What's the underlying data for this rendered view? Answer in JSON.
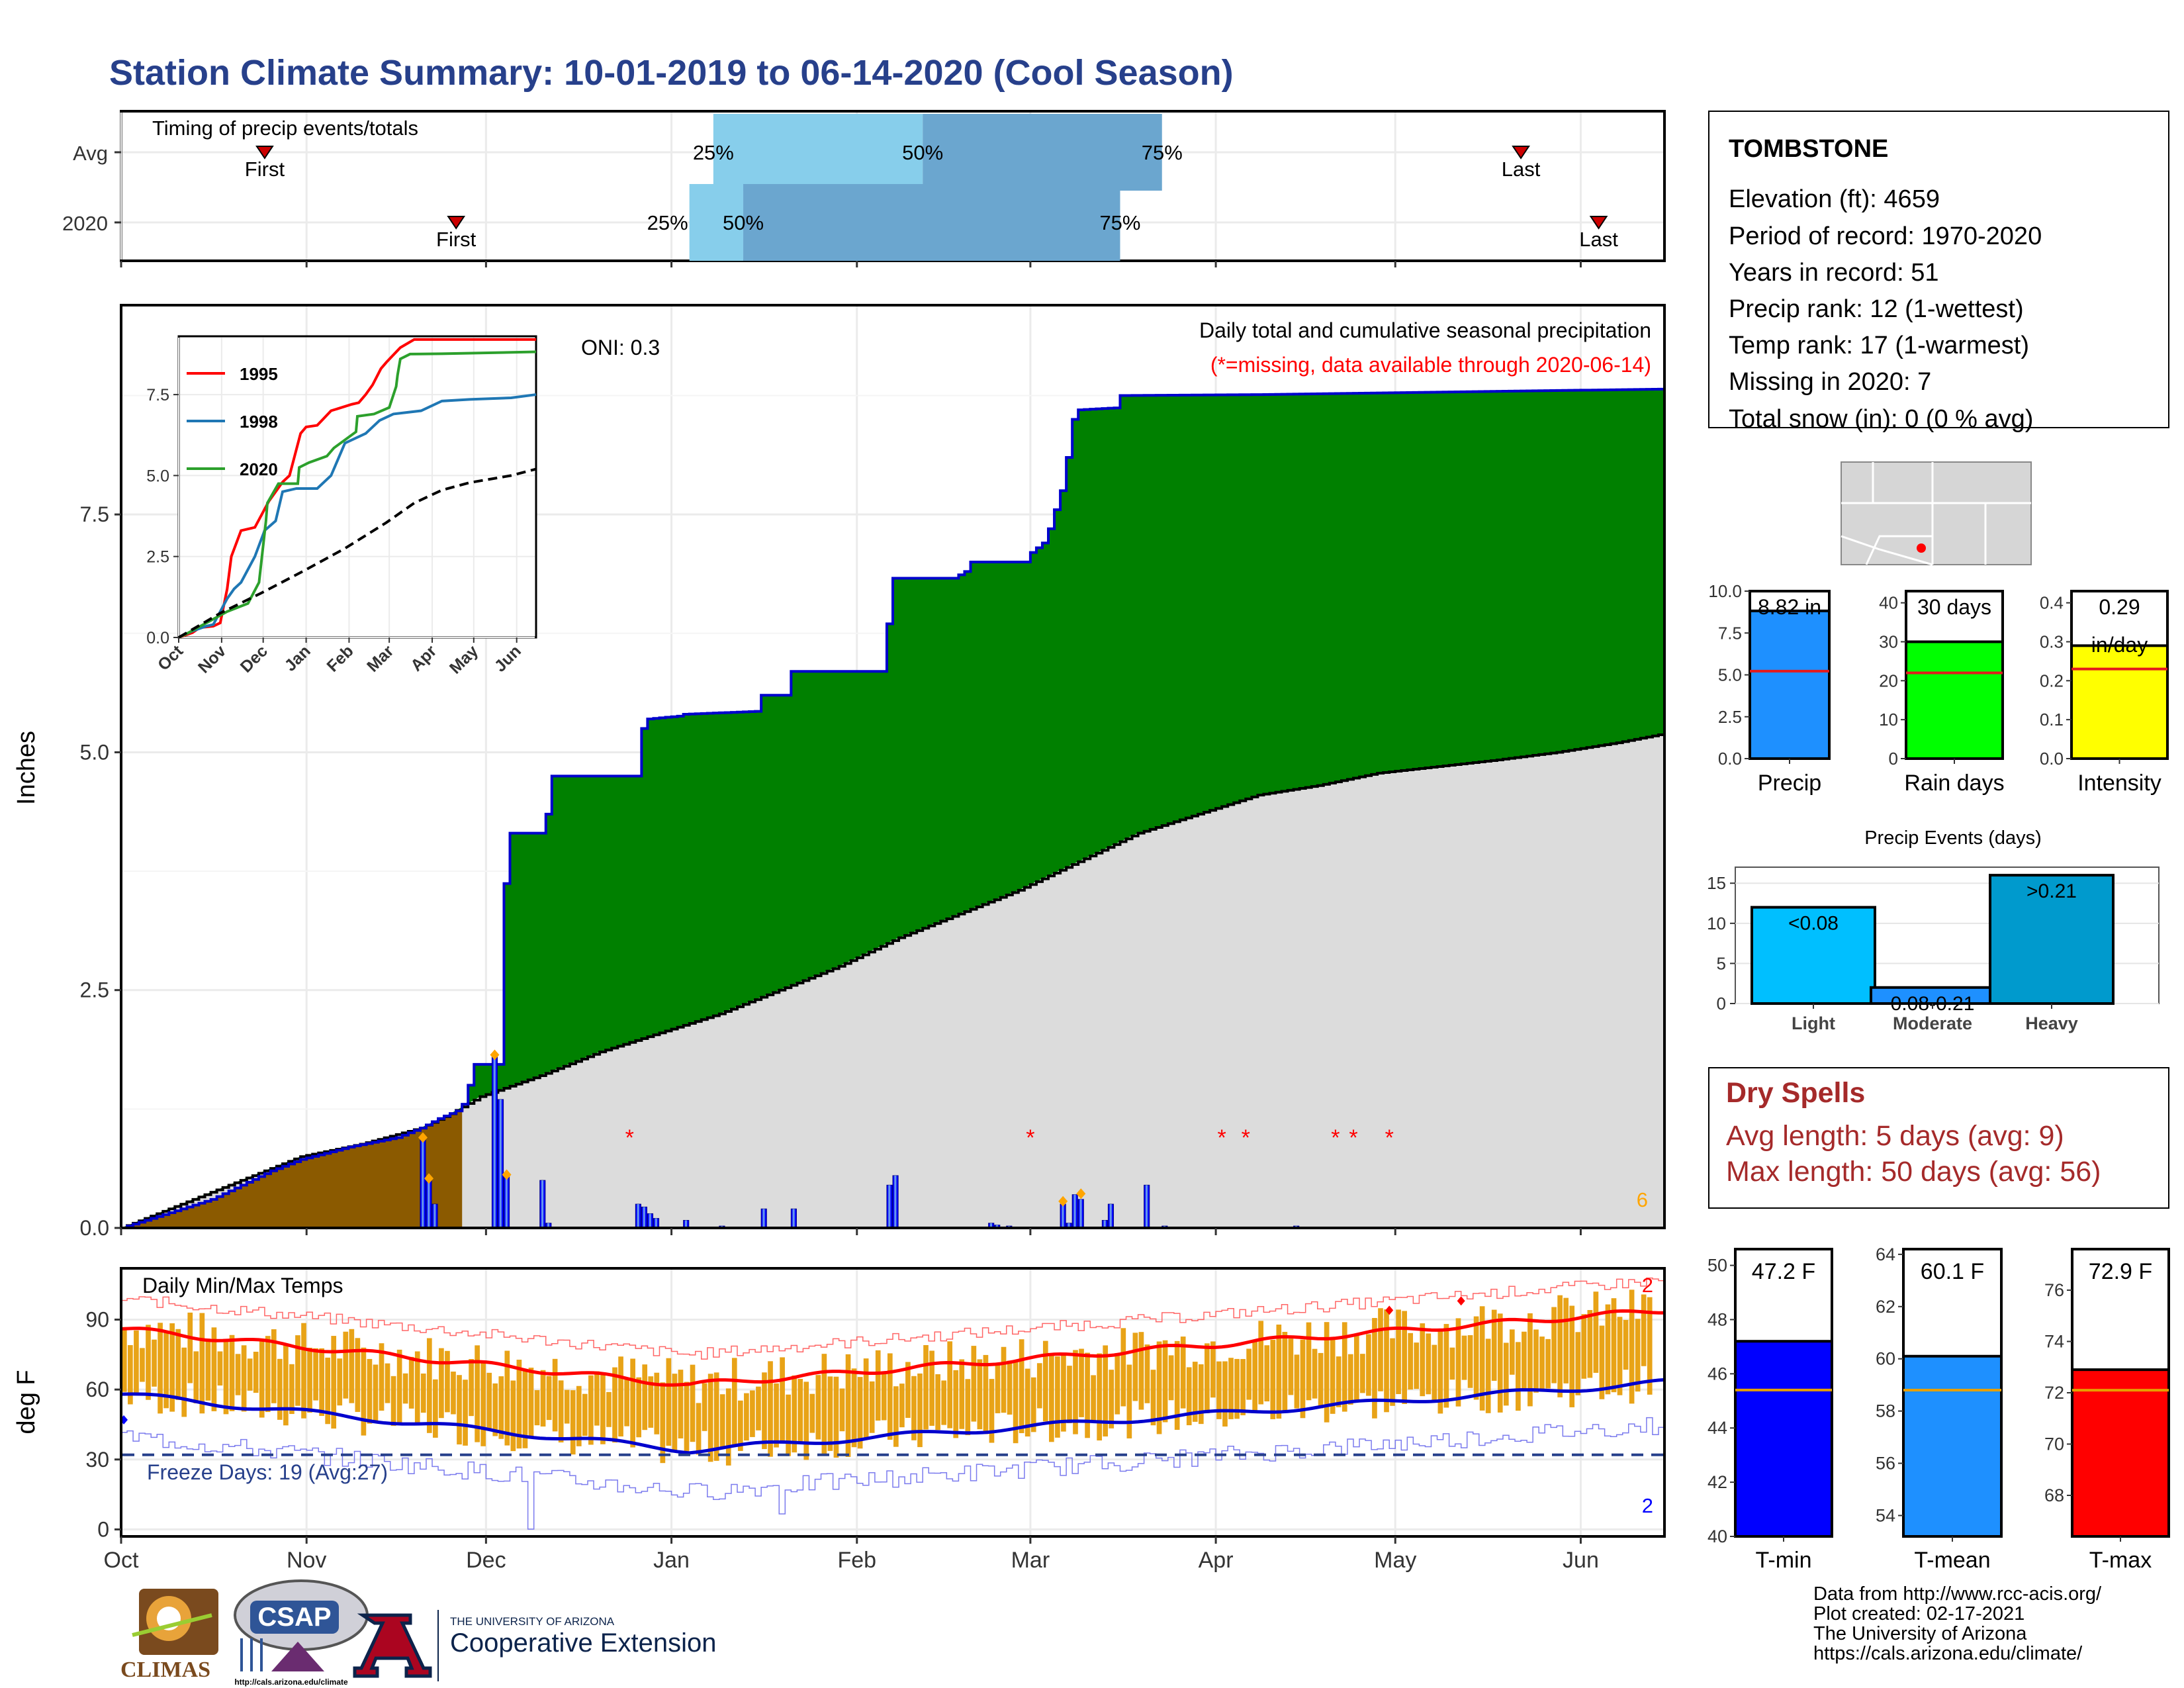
{
  "title": "Station Climate Summary: 10-01-2019 to 06-14-2020 (Cool Season)",
  "colors": {
    "title": "#27408B",
    "green": "#008000",
    "brown": "#8B5A00",
    "normal_gray": "#DCDCDC",
    "blue_bar": "#0000FF",
    "light_blue": "#87CEEB",
    "mid_blue": "#6BA6CF",
    "red": "#FF0000",
    "orange": "#FFA500",
    "dry_red": "#A52A2A"
  },
  "timing": {
    "label": "Timing of precip events/totals",
    "rows": [
      {
        "name": "Avg",
        "first_label": "First",
        "last_label": "Last",
        "p25": "25%",
        "p50": "50%",
        "p75": "75%",
        "first_day": 24,
        "last_day": 234,
        "d25": 99,
        "d50": 134,
        "d75": 174
      },
      {
        "name": "2020",
        "first_label": "First",
        "last_label": "Last",
        "p25": "25%",
        "p50": "50%",
        "p75": "75%",
        "first_day": 56,
        "last_day": 247,
        "d25": 95,
        "d50": 104,
        "d75": 167
      }
    ]
  },
  "station": {
    "name": "TOMBSTONE",
    "lines": [
      "Elevation (ft): 4659",
      "Period of record: 1970-2020",
      "Years in record: 51",
      "Precip rank: 12 (1-wettest)",
      "Temp rank: 17 (1-warmest)",
      "Missing in 2020: 7",
      "Total snow (in): 0 (0 % avg)"
    ]
  },
  "map": {
    "marker": "station-location"
  },
  "main_chart": {
    "ylabel": "Inches",
    "oni": "ONI: 0.3",
    "subtitle": "Daily total and cumulative seasonal precipitation",
    "missing_note": "(*=missing, data available through 2020-06-14)",
    "count_label": "6",
    "yticks": [
      "0.0",
      "2.5",
      "5.0",
      "7.5"
    ],
    "ylim": [
      0,
      9.7
    ],
    "xticks": [
      {
        "label": "Oct",
        "day": 0
      },
      {
        "label": "Nov",
        "day": 31
      },
      {
        "label": "Dec",
        "day": 61
      },
      {
        "label": "Jan",
        "day": 92
      },
      {
        "label": "Feb",
        "day": 123
      },
      {
        "label": "Mar",
        "day": 152
      },
      {
        "label": "Apr",
        "day": 183
      },
      {
        "label": "May",
        "day": 213
      },
      {
        "label": "Jun",
        "day": 244
      }
    ],
    "cumulative_2020": [
      [
        0,
        0.0
      ],
      [
        5,
        0.1
      ],
      [
        10,
        0.2
      ],
      [
        15,
        0.3
      ],
      [
        20,
        0.45
      ],
      [
        25,
        0.6
      ],
      [
        30,
        0.72
      ],
      [
        35,
        0.8
      ],
      [
        38,
        0.85
      ],
      [
        42,
        0.9
      ],
      [
        46,
        0.95
      ],
      [
        50,
        1.05
      ],
      [
        53,
        1.15
      ],
      [
        56,
        1.23
      ],
      [
        57,
        1.3
      ],
      [
        58,
        1.5
      ],
      [
        58.5,
        1.72
      ],
      [
        59,
        1.72
      ],
      [
        60,
        1.72
      ],
      [
        63,
        1.72
      ],
      [
        63.5,
        3.58
      ],
      [
        64,
        3.62
      ],
      [
        64.5,
        4.15
      ],
      [
        70,
        4.15
      ],
      [
        71,
        4.35
      ],
      [
        72,
        4.75
      ],
      [
        73,
        4.75
      ],
      [
        80,
        4.75
      ],
      [
        86,
        4.75
      ],
      [
        86.5,
        5.1
      ],
      [
        87,
        5.25
      ],
      [
        88,
        5.35
      ],
      [
        93,
        5.38
      ],
      [
        94,
        5.4
      ],
      [
        106,
        5.43
      ],
      [
        107,
        5.6
      ],
      [
        111,
        5.6
      ],
      [
        112,
        5.85
      ],
      [
        127,
        5.85
      ],
      [
        128,
        6.35
      ],
      [
        129,
        6.83
      ],
      [
        139,
        6.83
      ],
      [
        141,
        6.9
      ],
      [
        142,
        7.0
      ],
      [
        151,
        7.0
      ],
      [
        152,
        7.1
      ],
      [
        154,
        7.2
      ],
      [
        155,
        7.35
      ],
      [
        157,
        7.75
      ],
      [
        158,
        8.1
      ],
      [
        159,
        8.5
      ],
      [
        160,
        8.6
      ],
      [
        166,
        8.62
      ],
      [
        167,
        8.75
      ],
      [
        190,
        8.76
      ],
      [
        260,
        8.82
      ]
    ],
    "normal_cum": [
      [
        0,
        0.0
      ],
      [
        20,
        0.5
      ],
      [
        30,
        0.75
      ],
      [
        40,
        0.88
      ],
      [
        50,
        1.05
      ],
      [
        55,
        1.2
      ],
      [
        60,
        1.38
      ],
      [
        70,
        1.6
      ],
      [
        80,
        1.85
      ],
      [
        90,
        2.05
      ],
      [
        100,
        2.25
      ],
      [
        110,
        2.5
      ],
      [
        120,
        2.75
      ],
      [
        130,
        3.05
      ],
      [
        140,
        3.3
      ],
      [
        150,
        3.55
      ],
      [
        160,
        3.85
      ],
      [
        170,
        4.15
      ],
      [
        180,
        4.35
      ],
      [
        190,
        4.55
      ],
      [
        200,
        4.65
      ],
      [
        210,
        4.78
      ],
      [
        220,
        4.85
      ],
      [
        230,
        4.92
      ],
      [
        240,
        5.0
      ],
      [
        250,
        5.1
      ],
      [
        260,
        5.22
      ]
    ],
    "daily_bars": [
      [
        50,
        0.95
      ],
      [
        51,
        0.5
      ],
      [
        52,
        0.25
      ],
      [
        62,
        1.8
      ],
      [
        63,
        1.35
      ],
      [
        64,
        0.55
      ],
      [
        70,
        0.5
      ],
      [
        71,
        0.05
      ],
      [
        86,
        0.25
      ],
      [
        87,
        0.22
      ],
      [
        88,
        0.15
      ],
      [
        89,
        0.1
      ],
      [
        94,
        0.08
      ],
      [
        100,
        0.02
      ],
      [
        107,
        0.2
      ],
      [
        112,
        0.2
      ],
      [
        128,
        0.45
      ],
      [
        129,
        0.55
      ],
      [
        145,
        0.05
      ],
      [
        146,
        0.03
      ],
      [
        148,
        0.02
      ],
      [
        157,
        0.25
      ],
      [
        158,
        0.05
      ],
      [
        159,
        0.35
      ],
      [
        160,
        0.3
      ],
      [
        164,
        0.08
      ],
      [
        165,
        0.25
      ],
      [
        171,
        0.45
      ],
      [
        174,
        0.02
      ],
      [
        196,
        0.02
      ]
    ],
    "markers_orange": [
      [
        50,
        0.95
      ],
      [
        51,
        0.52
      ],
      [
        62,
        1.82
      ],
      [
        64,
        0.56
      ],
      [
        157,
        0.28
      ],
      [
        160,
        0.36
      ]
    ],
    "missing_days": [
      85,
      152,
      184,
      188,
      203,
      206,
      212
    ]
  },
  "inset": {
    "yticks": [
      "0.0",
      "2.5",
      "5.0",
      "7.5"
    ],
    "xticks": [
      "Oct",
      "Nov",
      "Dec",
      "Jan",
      "Feb",
      "Mar",
      "Apr",
      "May",
      "Jun"
    ],
    "ylim": [
      0,
      9.3
    ],
    "series": [
      {
        "name": "1995",
        "color": "#FF0000",
        "points": [
          [
            0,
            0
          ],
          [
            10,
            0.15
          ],
          [
            15,
            0.3
          ],
          [
            25,
            0.35
          ],
          [
            30,
            0.45
          ],
          [
            35,
            1.5
          ],
          [
            38,
            2.5
          ],
          [
            45,
            3.3
          ],
          [
            55,
            3.4
          ],
          [
            65,
            4.2
          ],
          [
            75,
            4.8
          ],
          [
            80,
            5.0
          ],
          [
            88,
            6.3
          ],
          [
            92,
            6.5
          ],
          [
            100,
            6.55
          ],
          [
            110,
            7.0
          ],
          [
            125,
            7.2
          ],
          [
            130,
            7.25
          ],
          [
            135,
            7.5
          ],
          [
            140,
            7.8
          ],
          [
            146,
            8.3
          ],
          [
            150,
            8.5
          ],
          [
            160,
            8.95
          ],
          [
            170,
            9.2
          ],
          [
            185,
            9.2
          ],
          [
            200,
            9.2
          ],
          [
            258,
            9.2
          ]
        ]
      },
      {
        "name": "1998",
        "color": "#1F77B4",
        "points": [
          [
            0,
            0
          ],
          [
            10,
            0.2
          ],
          [
            20,
            0.35
          ],
          [
            25,
            0.4
          ],
          [
            35,
            1.2
          ],
          [
            40,
            1.5
          ],
          [
            45,
            1.7
          ],
          [
            55,
            2.5
          ],
          [
            62,
            3.3
          ],
          [
            70,
            3.6
          ],
          [
            75,
            4.5
          ],
          [
            85,
            4.6
          ],
          [
            100,
            4.6
          ],
          [
            110,
            5.0
          ],
          [
            115,
            5.5
          ],
          [
            120,
            6.0
          ],
          [
            135,
            6.3
          ],
          [
            145,
            6.7
          ],
          [
            155,
            6.9
          ],
          [
            175,
            7.0
          ],
          [
            190,
            7.3
          ],
          [
            210,
            7.35
          ],
          [
            240,
            7.4
          ],
          [
            258,
            7.5
          ]
        ]
      },
      {
        "name": "2020",
        "color": "#2CA02C",
        "points": [
          [
            0,
            0
          ],
          [
            5,
            0.1
          ],
          [
            20,
            0.45
          ],
          [
            35,
            0.8
          ],
          [
            50,
            1.05
          ],
          [
            58,
            1.7
          ],
          [
            63,
            3.6
          ],
          [
            64,
            4.15
          ],
          [
            72,
            4.75
          ],
          [
            86,
            4.75
          ],
          [
            87,
            5.25
          ],
          [
            94,
            5.4
          ],
          [
            107,
            5.6
          ],
          [
            112,
            5.85
          ],
          [
            128,
            6.35
          ],
          [
            129,
            6.83
          ],
          [
            141,
            6.9
          ],
          [
            152,
            7.1
          ],
          [
            157,
            7.75
          ],
          [
            158,
            8.1
          ],
          [
            160,
            8.6
          ],
          [
            167,
            8.75
          ],
          [
            190,
            8.76
          ],
          [
            258,
            8.82
          ]
        ]
      },
      {
        "name": "avg",
        "color": "#000000",
        "dashed": true,
        "points": [
          [
            0,
            0
          ],
          [
            30,
            0.75
          ],
          [
            60,
            1.38
          ],
          [
            90,
            2.05
          ],
          [
            120,
            2.75
          ],
          [
            150,
            3.55
          ],
          [
            170,
            4.15
          ],
          [
            190,
            4.55
          ],
          [
            210,
            4.78
          ],
          [
            240,
            5.0
          ],
          [
            258,
            5.2
          ]
        ]
      }
    ]
  },
  "indicators": [
    {
      "id": "precip",
      "label": "Precip",
      "value_text": "8.82 in",
      "value": 8.82,
      "avg": 5.22,
      "ymax": 10,
      "yticks": [
        "0.0",
        "2.5",
        "5.0",
        "7.5",
        "10.0"
      ],
      "color": "#1E90FF"
    },
    {
      "id": "raindays",
      "label": "Rain days",
      "value_text": "30 days",
      "value": 30,
      "avg": 22,
      "ymax": 43,
      "yticks": [
        "0",
        "10",
        "20",
        "30",
        "40"
      ],
      "color": "#00FF00"
    },
    {
      "id": "intensity",
      "label": "Intensity",
      "value_text": "0.29",
      "value_text2": "in/day",
      "value": 0.29,
      "avg": 0.23,
      "ymax": 0.43,
      "yticks": [
        "0.0",
        "0.1",
        "0.2",
        "0.3",
        "0.4"
      ],
      "color": "#FFFF00"
    }
  ],
  "events": {
    "title": "Precip Events (days)",
    "yticks": [
      "0",
      "5",
      "10",
      "15"
    ],
    "ymax": 17,
    "bars": [
      {
        "cat": "Light",
        "label": "<0.08",
        "value": 12,
        "color": "#00BFFF"
      },
      {
        "cat": "Moderate",
        "label": "0.08-0.21",
        "value": 2,
        "color": "#1E90FF"
      },
      {
        "cat": "Heavy",
        "label": ">0.21",
        "value": 16,
        "color": "#009ACD"
      }
    ]
  },
  "dry_spells": {
    "title": "Dry Spells",
    "avg_line": "Avg length: 5 days (avg: 9)",
    "max_line": "Max length: 50 days (avg: 56)"
  },
  "temps": {
    "label": "Daily Min/Max Temps",
    "ylabel": "deg F",
    "freeze": "Freeze Days: 19 (Avg:27)",
    "freeze_value": 32,
    "yticks": [
      "0",
      "30",
      "60",
      "90"
    ],
    "ylim": [
      -3,
      112
    ],
    "count_top": "2",
    "count_bottom": "2"
  },
  "temp_bars": [
    {
      "label": "T-min",
      "value_text": "47.2 F",
      "value": 47.2,
      "avg": 45.4,
      "ylim": [
        40,
        50.6
      ],
      "yticks": [
        "40",
        "42",
        "44",
        "46",
        "48",
        "50"
      ],
      "color": "#0000FF"
    },
    {
      "label": "T-mean",
      "value_text": "60.1 F",
      "value": 60.1,
      "avg": 58.8,
      "ylim": [
        53.2,
        64.2
      ],
      "yticks": [
        "54",
        "56",
        "58",
        "60",
        "62",
        "64"
      ],
      "color": "#1E90FF"
    },
    {
      "label": "T-max",
      "value_text": "72.9 F",
      "value": 72.9,
      "avg": 72.1,
      "ylim": [
        66.4,
        77.6
      ],
      "yticks": [
        "68",
        "70",
        "72",
        "74",
        "76"
      ],
      "color": "#FF0000"
    }
  ],
  "footer": {
    "lines": [
      "Data from http://www.rcc-acis.org/",
      "Plot created: 02-17-2021",
      "The University of Arizona",
      "https://cals.arizona.edu/climate/"
    ],
    "climas": "CLIMAS",
    "csap": "CSAP",
    "csap_url": "http://cals.arizona.edu/climate",
    "ua_small": "THE UNIVERSITY OF ARIZONA",
    "ua_big": "Cooperative Extension"
  }
}
